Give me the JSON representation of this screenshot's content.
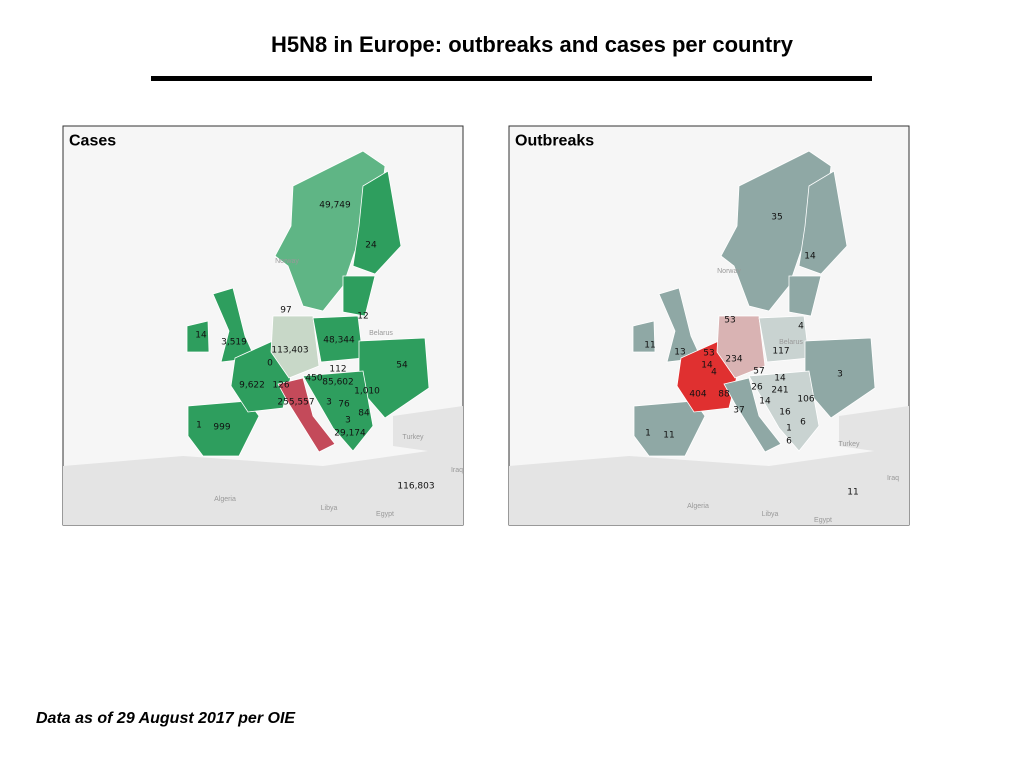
{
  "header": {
    "title": "H5N8 in Europe: outbreaks and cases per country"
  },
  "maps": [
    {
      "title": "Cases",
      "labels": [
        "49,749",
        "24",
        "97",
        "12",
        "14",
        "3,519",
        "48,344",
        "113,403",
        "0",
        "54",
        "112",
        "450",
        "85,602",
        "126",
        "9,622",
        "1,010",
        "255,557",
        "3",
        "76",
        "84",
        "1",
        "999",
        "3",
        "29,174",
        "116,803"
      ],
      "places": [
        "Norway",
        "Belarus",
        "Turkey",
        "Iraq",
        "Algeria",
        "Libya",
        "Egypt"
      ]
    },
    {
      "title": "Outbreaks",
      "labels": [
        "35",
        "14",
        "53",
        "4",
        "11",
        "13",
        "53",
        "234",
        "117",
        "14",
        "4",
        "57",
        "3",
        "14",
        "26",
        "241",
        "404",
        "88",
        "106",
        "14",
        "37",
        "16",
        "6",
        "1",
        "11",
        "1",
        "6",
        "11"
      ],
      "places": [
        "Norway",
        "Belarus",
        "Turkey",
        "Iraq",
        "Algeria",
        "Libya",
        "Egypt"
      ]
    }
  ],
  "footer": {
    "note": "Data as of 29 August 2017 per OIE"
  }
}
